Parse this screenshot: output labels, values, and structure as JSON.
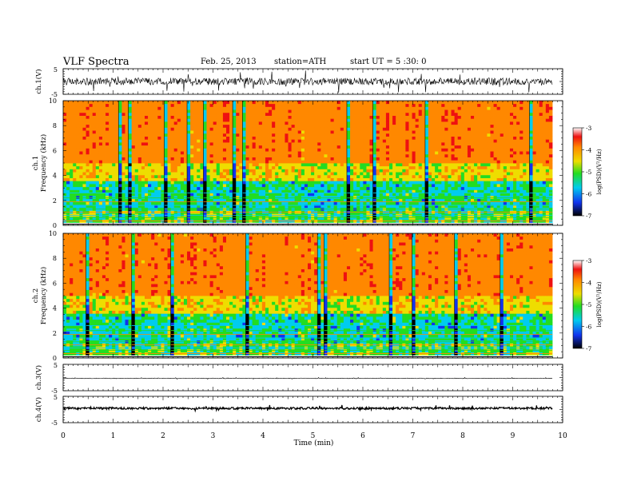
{
  "header": {
    "title": "VLF  Spectra",
    "date": "Feb. 25, 2013",
    "station": "station=ATH",
    "start_ut": "start  UT  =   5  :30: 0"
  },
  "chart_data": [
    {
      "type": "line",
      "ylabel": "ch.1(V)",
      "ylim": [
        -5,
        5
      ],
      "yticks": [
        "5",
        "-5"
      ],
      "description_values": "noisy waveform centered near 0 V, amplitude roughly ±2 V with spikes",
      "xlim": [
        0,
        10
      ]
    },
    {
      "type": "heatmap",
      "ylabel": "Frequency  (kHz)",
      "channel": "ch.1",
      "ylim": [
        0,
        10
      ],
      "yticks": [
        "0",
        "2",
        "4",
        "6",
        "8",
        "10"
      ],
      "xlim": [
        0,
        9.8
      ],
      "colorbar": {
        "label": "log(PSD)(V²/Hz)",
        "ticks": [
          "-3",
          "-4",
          "-5",
          "-6",
          "-7"
        ],
        "range": [
          -7,
          -3
        ]
      }
    },
    {
      "type": "heatmap",
      "ylabel": "Frequency  (kHz)",
      "channel": "ch.2",
      "ylim": [
        0,
        10
      ],
      "yticks": [
        "0",
        "2",
        "4",
        "6",
        "8",
        "10"
      ],
      "xlim": [
        0,
        9.8
      ],
      "colorbar": {
        "label": "log(PSD)(V²/Hz)",
        "ticks": [
          "-3",
          "-4",
          "-5",
          "-6",
          "-7"
        ],
        "range": [
          -7,
          -3
        ]
      }
    },
    {
      "type": "line",
      "ylabel": "ch.3(V)",
      "ylim": [
        -5,
        5
      ],
      "yticks": [
        "5",
        "-5"
      ],
      "xlim": [
        0,
        10
      ]
    },
    {
      "type": "line",
      "ylabel": "ch.4(V)",
      "ylim": [
        -5,
        5
      ],
      "yticks": [
        "5",
        "-5"
      ],
      "xlim": [
        0,
        10
      ]
    }
  ],
  "x_axis": {
    "label": "Time  (min)",
    "ticks": [
      "0",
      "1",
      "2",
      "3",
      "4",
      "5",
      "6",
      "7",
      "8",
      "9",
      "10"
    ],
    "xlim": [
      0,
      10
    ]
  },
  "colors": {
    "red": "#ee1111",
    "orange": "#ff8800",
    "yellow": "#eedd00",
    "green": "#22dd22",
    "cyan": "#00ccee",
    "blue": "#1133ee",
    "black": "#000000"
  }
}
